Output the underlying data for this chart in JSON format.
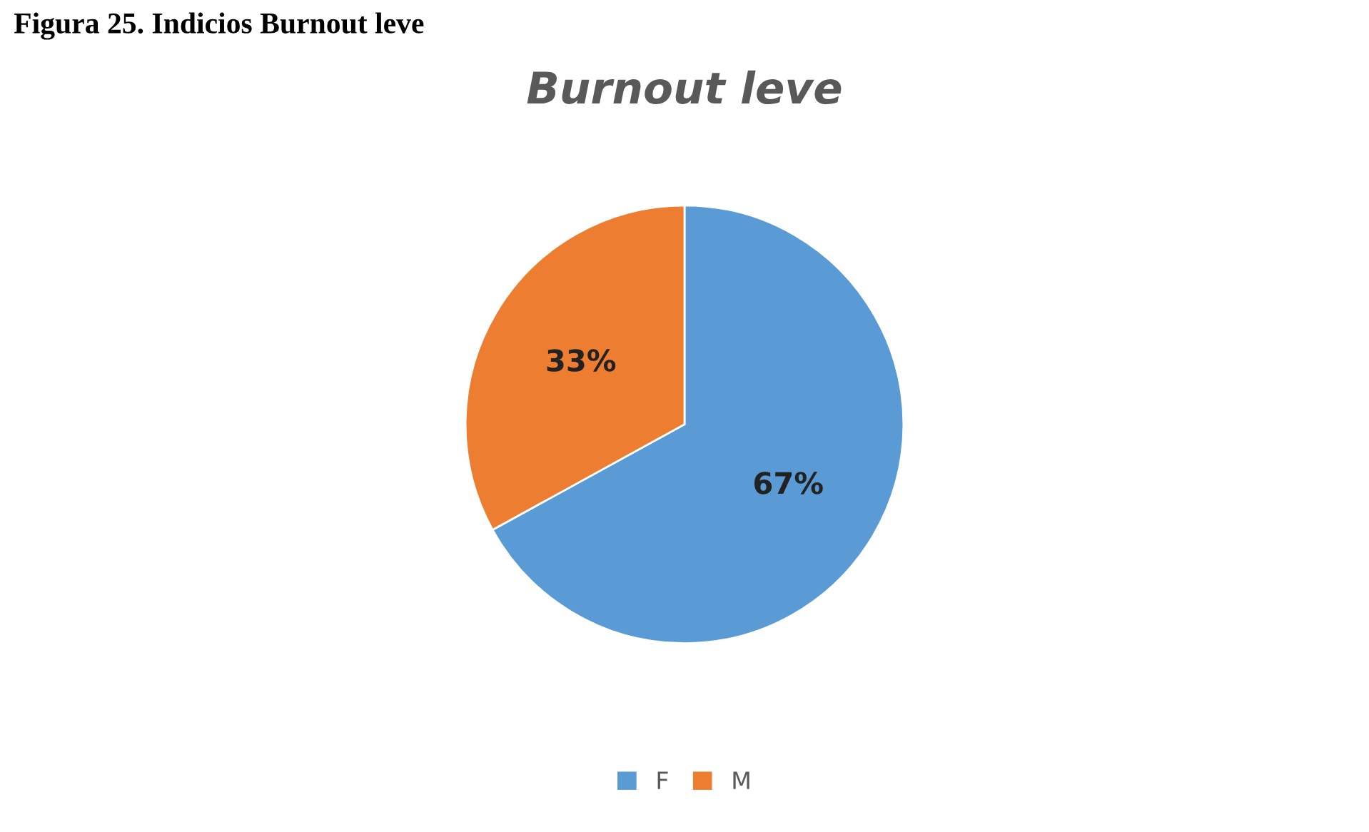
{
  "chart_data": {
    "type": "pie",
    "title": "Burnout leve",
    "categories": [
      "F",
      "M"
    ],
    "values": [
      67,
      33
    ],
    "colors": [
      "#5b9bd5",
      "#ed7d31"
    ],
    "value_labels": [
      "67%",
      "33%"
    ],
    "legend": "bottom",
    "annotations": [
      "Figura 25. Indicios Burnout leve"
    ]
  }
}
